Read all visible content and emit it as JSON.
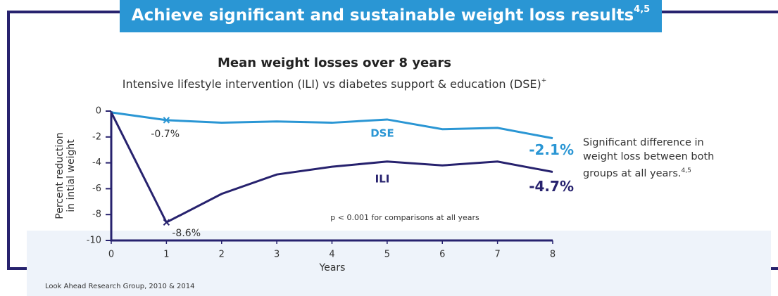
{
  "banner": {
    "text": "Achieve significant and sustainable weight loss results",
    "sup": "4,5"
  },
  "note": {
    "text": "Significant difference in weight loss between both groups at all years.",
    "sup": "4,5"
  },
  "footnote": "Look Ahead Research Group, 2010 & 2014",
  "chart_data": {
    "type": "line",
    "title": "Mean weight losses over 8 years",
    "subtitle": "Intensive lifestyle intervention (ILI) vs diabetes support & education (DSE)",
    "subtitle_sup": "+",
    "ylabel": [
      "Percent reduction",
      "in intial weight"
    ],
    "xlabel": "Years",
    "annotation": "p < 0.001 for comparisons at all years",
    "x": [
      0,
      1,
      2,
      3,
      4,
      5,
      6,
      7,
      8
    ],
    "xlim": [
      0,
      8
    ],
    "xticks": [
      0,
      1,
      2,
      3,
      4,
      5,
      6,
      7,
      8
    ],
    "ylim": [
      -10,
      0
    ],
    "yticks": [
      0,
      -2,
      -4,
      -6,
      -8,
      -10
    ],
    "series": [
      {
        "name": "DSE",
        "color": "#2a96d4",
        "values": [
          -0.1,
          -0.7,
          -0.9,
          -0.8,
          -0.9,
          -0.65,
          -1.4,
          -1.3,
          -2.1
        ],
        "value_labels": [
          null,
          "-0.7%",
          null,
          null,
          null,
          null,
          null,
          null,
          "-2.1%"
        ]
      },
      {
        "name": "ILI",
        "color": "#27226e",
        "values": [
          -0.1,
          -8.6,
          -6.4,
          -4.9,
          -4.3,
          -3.9,
          -4.2,
          -3.9,
          -4.7
        ],
        "value_labels": [
          null,
          "-8.6%",
          null,
          null,
          null,
          null,
          null,
          null,
          "-4.7%"
        ]
      }
    ]
  }
}
